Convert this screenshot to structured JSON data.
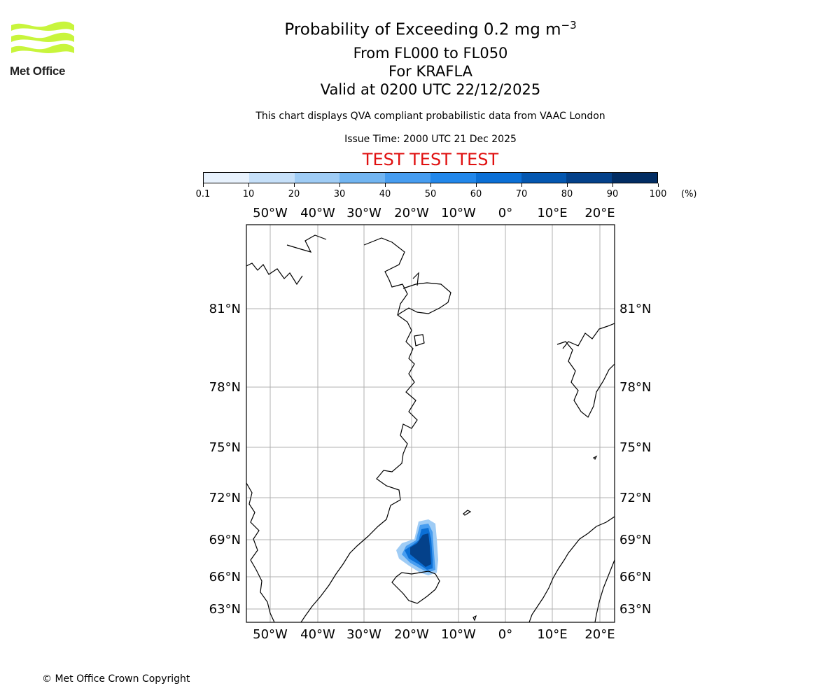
{
  "header": {
    "logo_text": "Met Office",
    "title_prefix": "Probability of Exceeding 0.2 mg m",
    "title_superscript": "−3",
    "levels": "From FL000 to FL050",
    "volcano": "For KRAFLA",
    "valid": "Valid at 0200 UTC 22/12/2025",
    "description": "This chart displays QVA compliant probabilistic data from VAAC London",
    "issue_time": "Issue Time: 2000 UTC 21 Dec 2025",
    "test_banner": "TEST TEST TEST"
  },
  "colorbar": {
    "tick_labels": [
      "0.1",
      "10",
      "20",
      "30",
      "40",
      "50",
      "60",
      "70",
      "80",
      "90",
      "100"
    ],
    "unit": "(%)",
    "colors": [
      "#e8f2fd",
      "#c6e0f9",
      "#9fccf5",
      "#72b5f1",
      "#479df0",
      "#2287ea",
      "#0b6fd5",
      "#0457b0",
      "#04418a",
      "#022d63"
    ]
  },
  "map": {
    "lon_labels_top": [
      "50°W",
      "40°W",
      "30°W",
      "20°W",
      "10°W",
      "0°",
      "10°E",
      "20°E"
    ],
    "lon_labels_bottom": [
      "50°W",
      "40°W",
      "30°W",
      "20°W",
      "10°W",
      "0°",
      "10°E",
      "20°E"
    ],
    "lat_labels_left": [
      "81°N",
      "78°N",
      "75°N",
      "72°N",
      "69°N",
      "66°N",
      "63°N"
    ],
    "lat_labels_right": [
      "81°N",
      "78°N",
      "75°N",
      "72°N",
      "69°N",
      "66°N",
      "63°N"
    ],
    "plume": {
      "description_level": "probability exceedance plume north of Iceland",
      "peak_probability_percent": 90
    },
    "grid": true,
    "land_color": "#ffffff",
    "coastline_color": "#000000"
  },
  "footer": {
    "copyright": "© Met Office Crown Copyright"
  }
}
